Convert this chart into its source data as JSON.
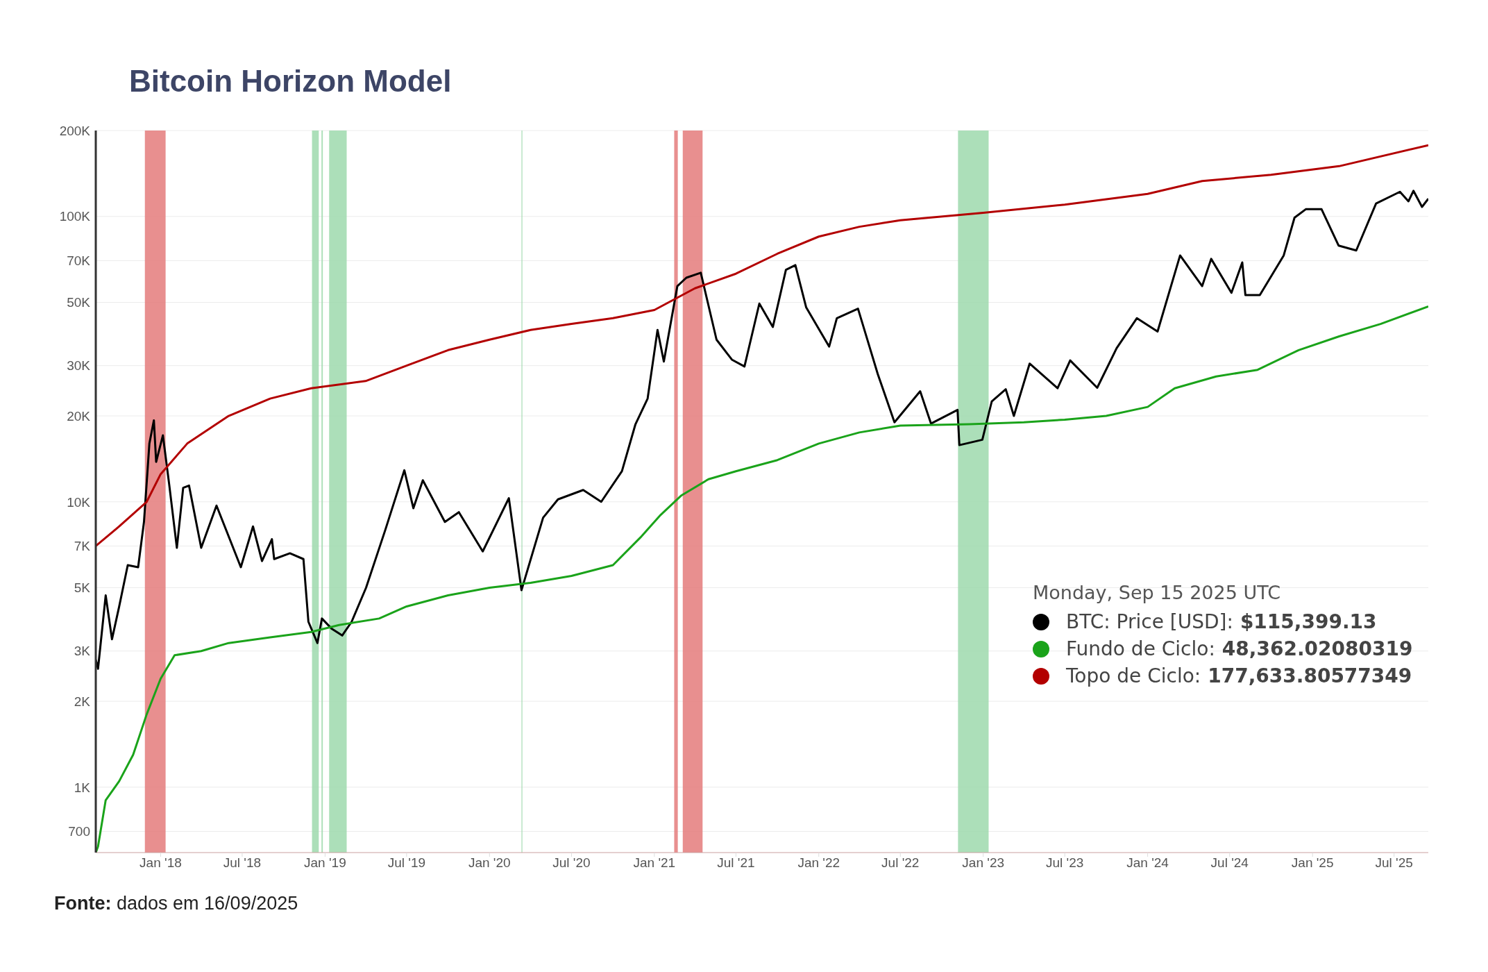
{
  "chart_data": {
    "type": "line",
    "title": "Bitcoin Horizon Model",
    "xlim": [
      "2017-08-10",
      "2025-09-15"
    ],
    "xticks": [
      {
        "value": "2018-01-01",
        "label": "Jan '18"
      },
      {
        "value": "2018-07-01",
        "label": "Jul '18"
      },
      {
        "value": "2019-01-01",
        "label": "Jan '19"
      },
      {
        "value": "2019-07-01",
        "label": "Jul '19"
      },
      {
        "value": "2020-01-01",
        "label": "Jan '20"
      },
      {
        "value": "2020-07-01",
        "label": "Jul '20"
      },
      {
        "value": "2021-01-01",
        "label": "Jan '21"
      },
      {
        "value": "2021-07-01",
        "label": "Jul '21"
      },
      {
        "value": "2022-01-01",
        "label": "Jan '22"
      },
      {
        "value": "2022-07-01",
        "label": "Jul '22"
      },
      {
        "value": "2023-01-01",
        "label": "Jan '23"
      },
      {
        "value": "2023-07-01",
        "label": "Jul '23"
      },
      {
        "value": "2024-01-01",
        "label": "Jan '24"
      },
      {
        "value": "2024-07-01",
        "label": "Jul '24"
      },
      {
        "value": "2025-01-01",
        "label": "Jan '25"
      },
      {
        "value": "2025-07-01",
        "label": "Jul '25"
      }
    ],
    "ylim": [
      590,
      200000
    ],
    "log": true,
    "yticks": [
      700,
      {
        "value": 1000,
        "label": "1K"
      },
      {
        "value": 2000,
        "label": "2K"
      },
      {
        "value": 3000,
        "label": "3K"
      },
      {
        "value": 5000,
        "label": "5K"
      },
      {
        "value": 7000,
        "label": "7K"
      },
      {
        "value": 10000,
        "label": "10K"
      },
      {
        "value": 20000,
        "label": "20K"
      },
      {
        "value": 30000,
        "label": "30K"
      },
      {
        "value": 50000,
        "label": "50K"
      },
      {
        "value": 70000,
        "label": "70K"
      },
      {
        "value": 100000,
        "label": "100K"
      },
      {
        "value": 200000,
        "label": "200K"
      }
    ],
    "grid": "y",
    "legend": "bottom right",
    "marker": "none",
    "line_style": "solid",
    "bands": [
      {
        "axis": "x",
        "from": "2017-11-27",
        "to": "2018-01-12",
        "color": "#e47b7b"
      },
      {
        "axis": "x",
        "from": "2018-12-03",
        "to": "2018-12-18",
        "color": "#9dd9ad"
      },
      {
        "axis": "x",
        "from": "2018-12-24",
        "to": "2018-12-27",
        "color": "#9dd9ad"
      },
      {
        "axis": "x",
        "from": "2019-01-10",
        "to": "2019-02-18",
        "color": "#9dd9ad"
      },
      {
        "axis": "x",
        "from": "2020-03-12",
        "to": "2020-03-14",
        "color": "#9dd9ad"
      },
      {
        "axis": "x",
        "from": "2021-02-14",
        "to": "2021-02-22",
        "color": "#e47b7b"
      },
      {
        "axis": "x",
        "from": "2021-03-05",
        "to": "2021-04-18",
        "color": "#e47b7b"
      },
      {
        "axis": "x",
        "from": "2022-11-06",
        "to": "2023-01-13",
        "color": "#9dd9ad"
      }
    ],
    "series": [
      {
        "name": "BTC: Price [USD]:",
        "color": "#000000",
        "x": [
          "2017-08-10",
          "2017-08-15",
          "2017-09-01",
          "2017-09-15",
          "2017-10-01",
          "2017-10-20",
          "2017-11-12",
          "2017-11-25",
          "2017-12-07",
          "2017-12-17",
          "2017-12-22",
          "2018-01-06",
          "2018-01-20",
          "2018-02-06",
          "2018-02-20",
          "2018-03-05",
          "2018-04-01",
          "2018-05-05",
          "2018-06-28",
          "2018-07-25",
          "2018-08-14",
          "2018-09-05",
          "2018-09-10",
          "2018-10-15",
          "2018-11-14",
          "2018-11-25",
          "2018-12-15",
          "2018-12-25",
          "2019-01-15",
          "2019-02-08",
          "2019-03-01",
          "2019-04-02",
          "2019-05-15",
          "2019-06-26",
          "2019-07-16",
          "2019-08-06",
          "2019-09-24",
          "2019-10-25",
          "2019-12-17",
          "2020-02-13",
          "2020-03-12",
          "2020-04-29",
          "2020-06-01",
          "2020-07-27",
          "2020-09-05",
          "2020-10-21",
          "2020-11-20",
          "2020-12-17",
          "2021-01-08",
          "2021-01-22",
          "2021-02-21",
          "2021-03-13",
          "2021-04-14",
          "2021-05-19",
          "2021-06-22",
          "2021-07-20",
          "2021-08-22",
          "2021-09-21",
          "2021-10-20",
          "2021-11-10",
          "2021-12-04",
          "2022-01-24",
          "2022-02-10",
          "2022-03-29",
          "2022-05-12",
          "2022-06-18",
          "2022-08-14",
          "2022-09-07",
          "2022-11-05",
          "2022-11-09",
          "2022-12-30",
          "2023-01-20",
          "2023-02-20",
          "2023-03-10",
          "2023-04-14",
          "2023-06-15",
          "2023-07-13",
          "2023-09-11",
          "2023-10-24",
          "2023-12-08",
          "2024-01-23",
          "2024-03-13",
          "2024-05-01",
          "2024-05-21",
          "2024-07-05",
          "2024-07-29",
          "2024-08-05",
          "2024-09-06",
          "2024-10-29",
          "2024-11-22",
          "2024-12-17",
          "2025-01-21",
          "2025-02-28",
          "2025-04-08",
          "2025-05-22",
          "2025-07-14",
          "2025-08-02",
          "2025-08-13",
          "2025-09-01",
          "2025-09-15"
        ],
        "values": [
          2800,
          2600,
          4700,
          3300,
          4300,
          6000,
          5900,
          8500,
          16000,
          19300,
          13800,
          17100,
          11500,
          6900,
          11200,
          11400,
          6900,
          9700,
          5900,
          8200,
          6200,
          7400,
          6300,
          6600,
          6300,
          3800,
          3200,
          3900,
          3600,
          3400,
          3800,
          5000,
          8000,
          12900,
          9500,
          11900,
          8500,
          9200,
          6700,
          10300,
          4900,
          8800,
          10200,
          11000,
          10000,
          12800,
          18700,
          23000,
          40000,
          31000,
          57000,
          61000,
          63500,
          37000,
          31500,
          29800,
          49500,
          41000,
          65000,
          67500,
          48000,
          35000,
          44000,
          47500,
          28000,
          19000,
          24400,
          18800,
          21000,
          15800,
          16500,
          22500,
          24800,
          20000,
          30500,
          25000,
          31300,
          25100,
          34500,
          44000,
          39500,
          73000,
          57000,
          71000,
          54000,
          69000,
          53000,
          53000,
          73000,
          99000,
          106000,
          106000,
          79000,
          76000,
          111000,
          122000,
          113000,
          123000,
          108000,
          115399.13
        ]
      },
      {
        "name": "Fundo de Ciclo:",
        "color": "#1aa31a",
        "x": [
          "2017-08-10",
          "2017-08-15",
          "2017-09-01",
          "2017-10-01",
          "2017-11-01",
          "2017-12-01",
          "2018-01-01",
          "2018-02-01",
          "2018-04-01",
          "2018-06-01",
          "2018-09-01",
          "2018-12-01",
          "2019-02-01",
          "2019-05-01",
          "2019-07-01",
          "2019-10-01",
          "2020-01-01",
          "2020-04-01",
          "2020-07-01",
          "2020-10-01",
          "2020-12-01",
          "2021-01-15",
          "2021-03-01",
          "2021-05-01",
          "2021-07-01",
          "2021-10-01",
          "2022-01-01",
          "2022-04-01",
          "2022-07-01",
          "2022-12-01",
          "2023-04-01",
          "2023-07-01",
          "2023-10-01",
          "2024-01-01",
          "2024-03-01",
          "2024-06-01",
          "2024-09-01",
          "2024-12-01",
          "2025-03-01",
          "2025-06-01",
          "2025-09-15"
        ],
        "values": [
          590,
          620,
          900,
          1050,
          1300,
          1800,
          2400,
          2900,
          3000,
          3200,
          3350,
          3500,
          3700,
          3900,
          4300,
          4700,
          5000,
          5200,
          5500,
          6000,
          7500,
          9000,
          10500,
          12000,
          12800,
          14000,
          16000,
          17500,
          18500,
          18700,
          19000,
          19400,
          20000,
          21500,
          25000,
          27500,
          29000,
          34000,
          38000,
          42000,
          48362.02080319
        ]
      },
      {
        "name": "Topo de Ciclo:",
        "color": "#b30000",
        "x": [
          "2017-08-10",
          "2017-10-01",
          "2017-12-01",
          "2018-01-01",
          "2018-03-01",
          "2018-06-01",
          "2018-09-01",
          "2018-12-01",
          "2019-04-01",
          "2019-07-01",
          "2019-10-01",
          "2020-01-01",
          "2020-04-01",
          "2020-07-01",
          "2020-10-01",
          "2021-01-01",
          "2021-04-01",
          "2021-07-01",
          "2021-10-01",
          "2022-01-01",
          "2022-04-01",
          "2022-07-01",
          "2023-01-01",
          "2023-07-01",
          "2024-01-01",
          "2024-05-01",
          "2024-10-01",
          "2025-03-01",
          "2025-09-15"
        ],
        "values": [
          7000,
          8200,
          10000,
          12500,
          16000,
          20000,
          23000,
          25000,
          26500,
          30000,
          34000,
          37000,
          40000,
          42000,
          44000,
          47000,
          56000,
          63000,
          74000,
          85000,
          92000,
          97000,
          103000,
          110000,
          120000,
          133000,
          140000,
          150000,
          177633.80577349
        ]
      }
    ],
    "annotations": [
      "Monday, Sep 15 2025 UTC",
      "$115,399.13",
      "48,362.02080319",
      "177,633.80577349",
      "Fonte: dados em 16/09/2025"
    ]
  }
}
